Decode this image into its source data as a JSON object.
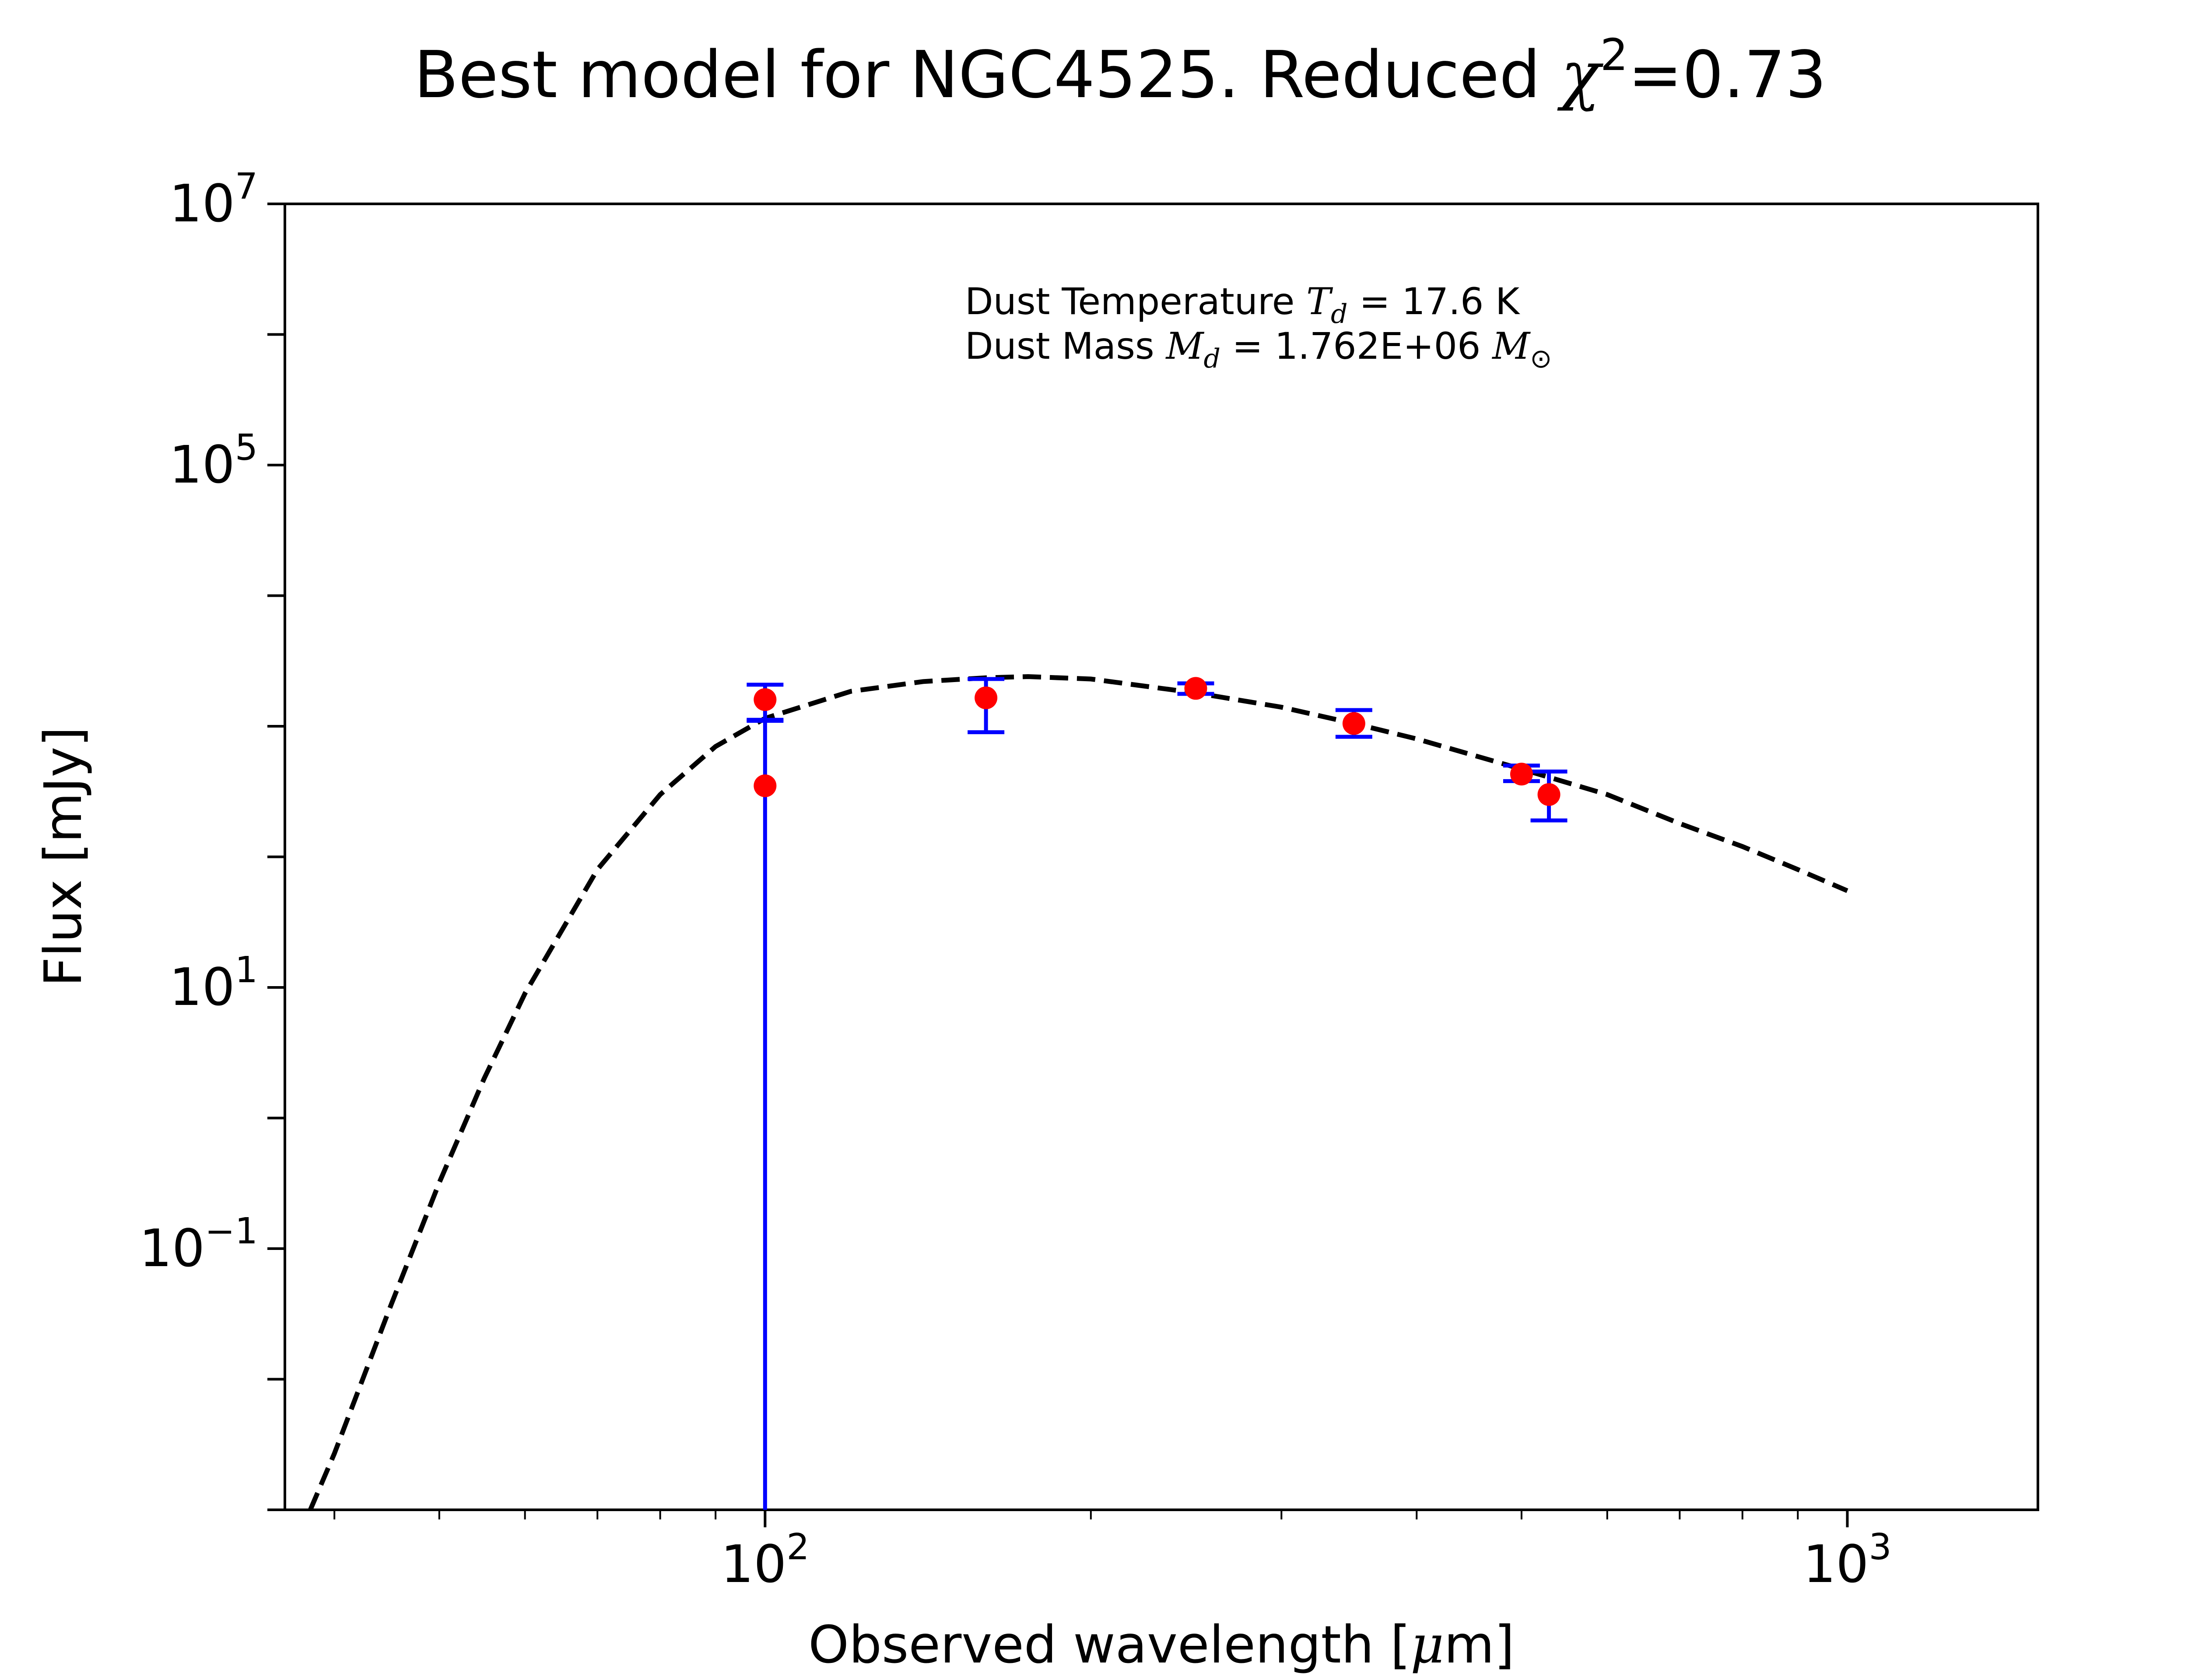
{
  "chart_data": {
    "type": "scatter",
    "title": "Best model for NGC4525. Reduced χ²=0.73",
    "title_parts": {
      "prefix": "Best model for NGC4525. Reduced ",
      "symbol": "χ",
      "sup": "2",
      "suffix": "=0.73"
    },
    "xlabel": "Observed wavelength [μm]",
    "xlabel_parts": {
      "prefix": "Observed wavelength [",
      "symbol": "μ",
      "suffix": "m]"
    },
    "ylabel": "Flux [mJy]",
    "xscale": "log",
    "yscale": "log",
    "xlim": [
      36,
      1500
    ],
    "ylim": [
      0.001,
      10000000
    ],
    "x_ticks": [
      {
        "value": 100,
        "base": "10",
        "exp": "2"
      },
      {
        "value": 1000,
        "base": "10",
        "exp": "3"
      }
    ],
    "y_ticks": [
      {
        "value": 0.1,
        "base": "10",
        "exp": "−1"
      },
      {
        "value": 10,
        "base": "10",
        "exp": "1"
      },
      {
        "value": 100000,
        "base": "10",
        "exp": "5"
      },
      {
        "value": 10000000,
        "base": "10",
        "exp": "7"
      }
    ],
    "grid": false,
    "annotations": {
      "line1": {
        "prefix": "Dust Temperature ",
        "sym": "T",
        "sub": "d",
        "suffix": " = 17.6 K"
      },
      "line2": {
        "prefix": "Dust Mass ",
        "sym": "M",
        "sub": "d",
        "mid": " = 1.762E+06 ",
        "sym2": "M",
        "sub2": "⊙"
      }
    },
    "observations": {
      "marker_color": "#ff0000",
      "errorbar_color": "#0000ff",
      "points": [
        {
          "x": 100,
          "y": 1600,
          "yerr_low": 480,
          "yerr_high": 480
        },
        {
          "x": 100,
          "y": 350,
          "yerr_low": 349.999,
          "yerr_high": 750
        },
        {
          "x": 160,
          "y": 1650,
          "yerr_low": 750,
          "yerr_high": 650
        },
        {
          "x": 250,
          "y": 1950,
          "yerr_low": 180,
          "yerr_high": 180
        },
        {
          "x": 350,
          "y": 1050,
          "yerr_low": 220,
          "yerr_high": 280
        },
        {
          "x": 500,
          "y": 430,
          "yerr_low": 50,
          "yerr_high": 70
        },
        {
          "x": 530,
          "y": 300,
          "yerr_low": 110,
          "yerr_high": 150
        }
      ]
    },
    "model": {
      "style": "dashed",
      "color": "#000000",
      "x": [
        38,
        40,
        45,
        50,
        55,
        60,
        70,
        80,
        90,
        100,
        120,
        140,
        160,
        175,
        200,
        250,
        300,
        350,
        400,
        500,
        600,
        700,
        800,
        900,
        1000
      ],
      "y": [
        0.001,
        0.0027,
        0.035,
        0.32,
        2.0,
        9.0,
        80,
        300,
        700,
        1150,
        1850,
        2200,
        2350,
        2400,
        2300,
        1800,
        1400,
        1050,
        800,
        470,
        300,
        180,
        120,
        80,
        55
      ]
    }
  }
}
